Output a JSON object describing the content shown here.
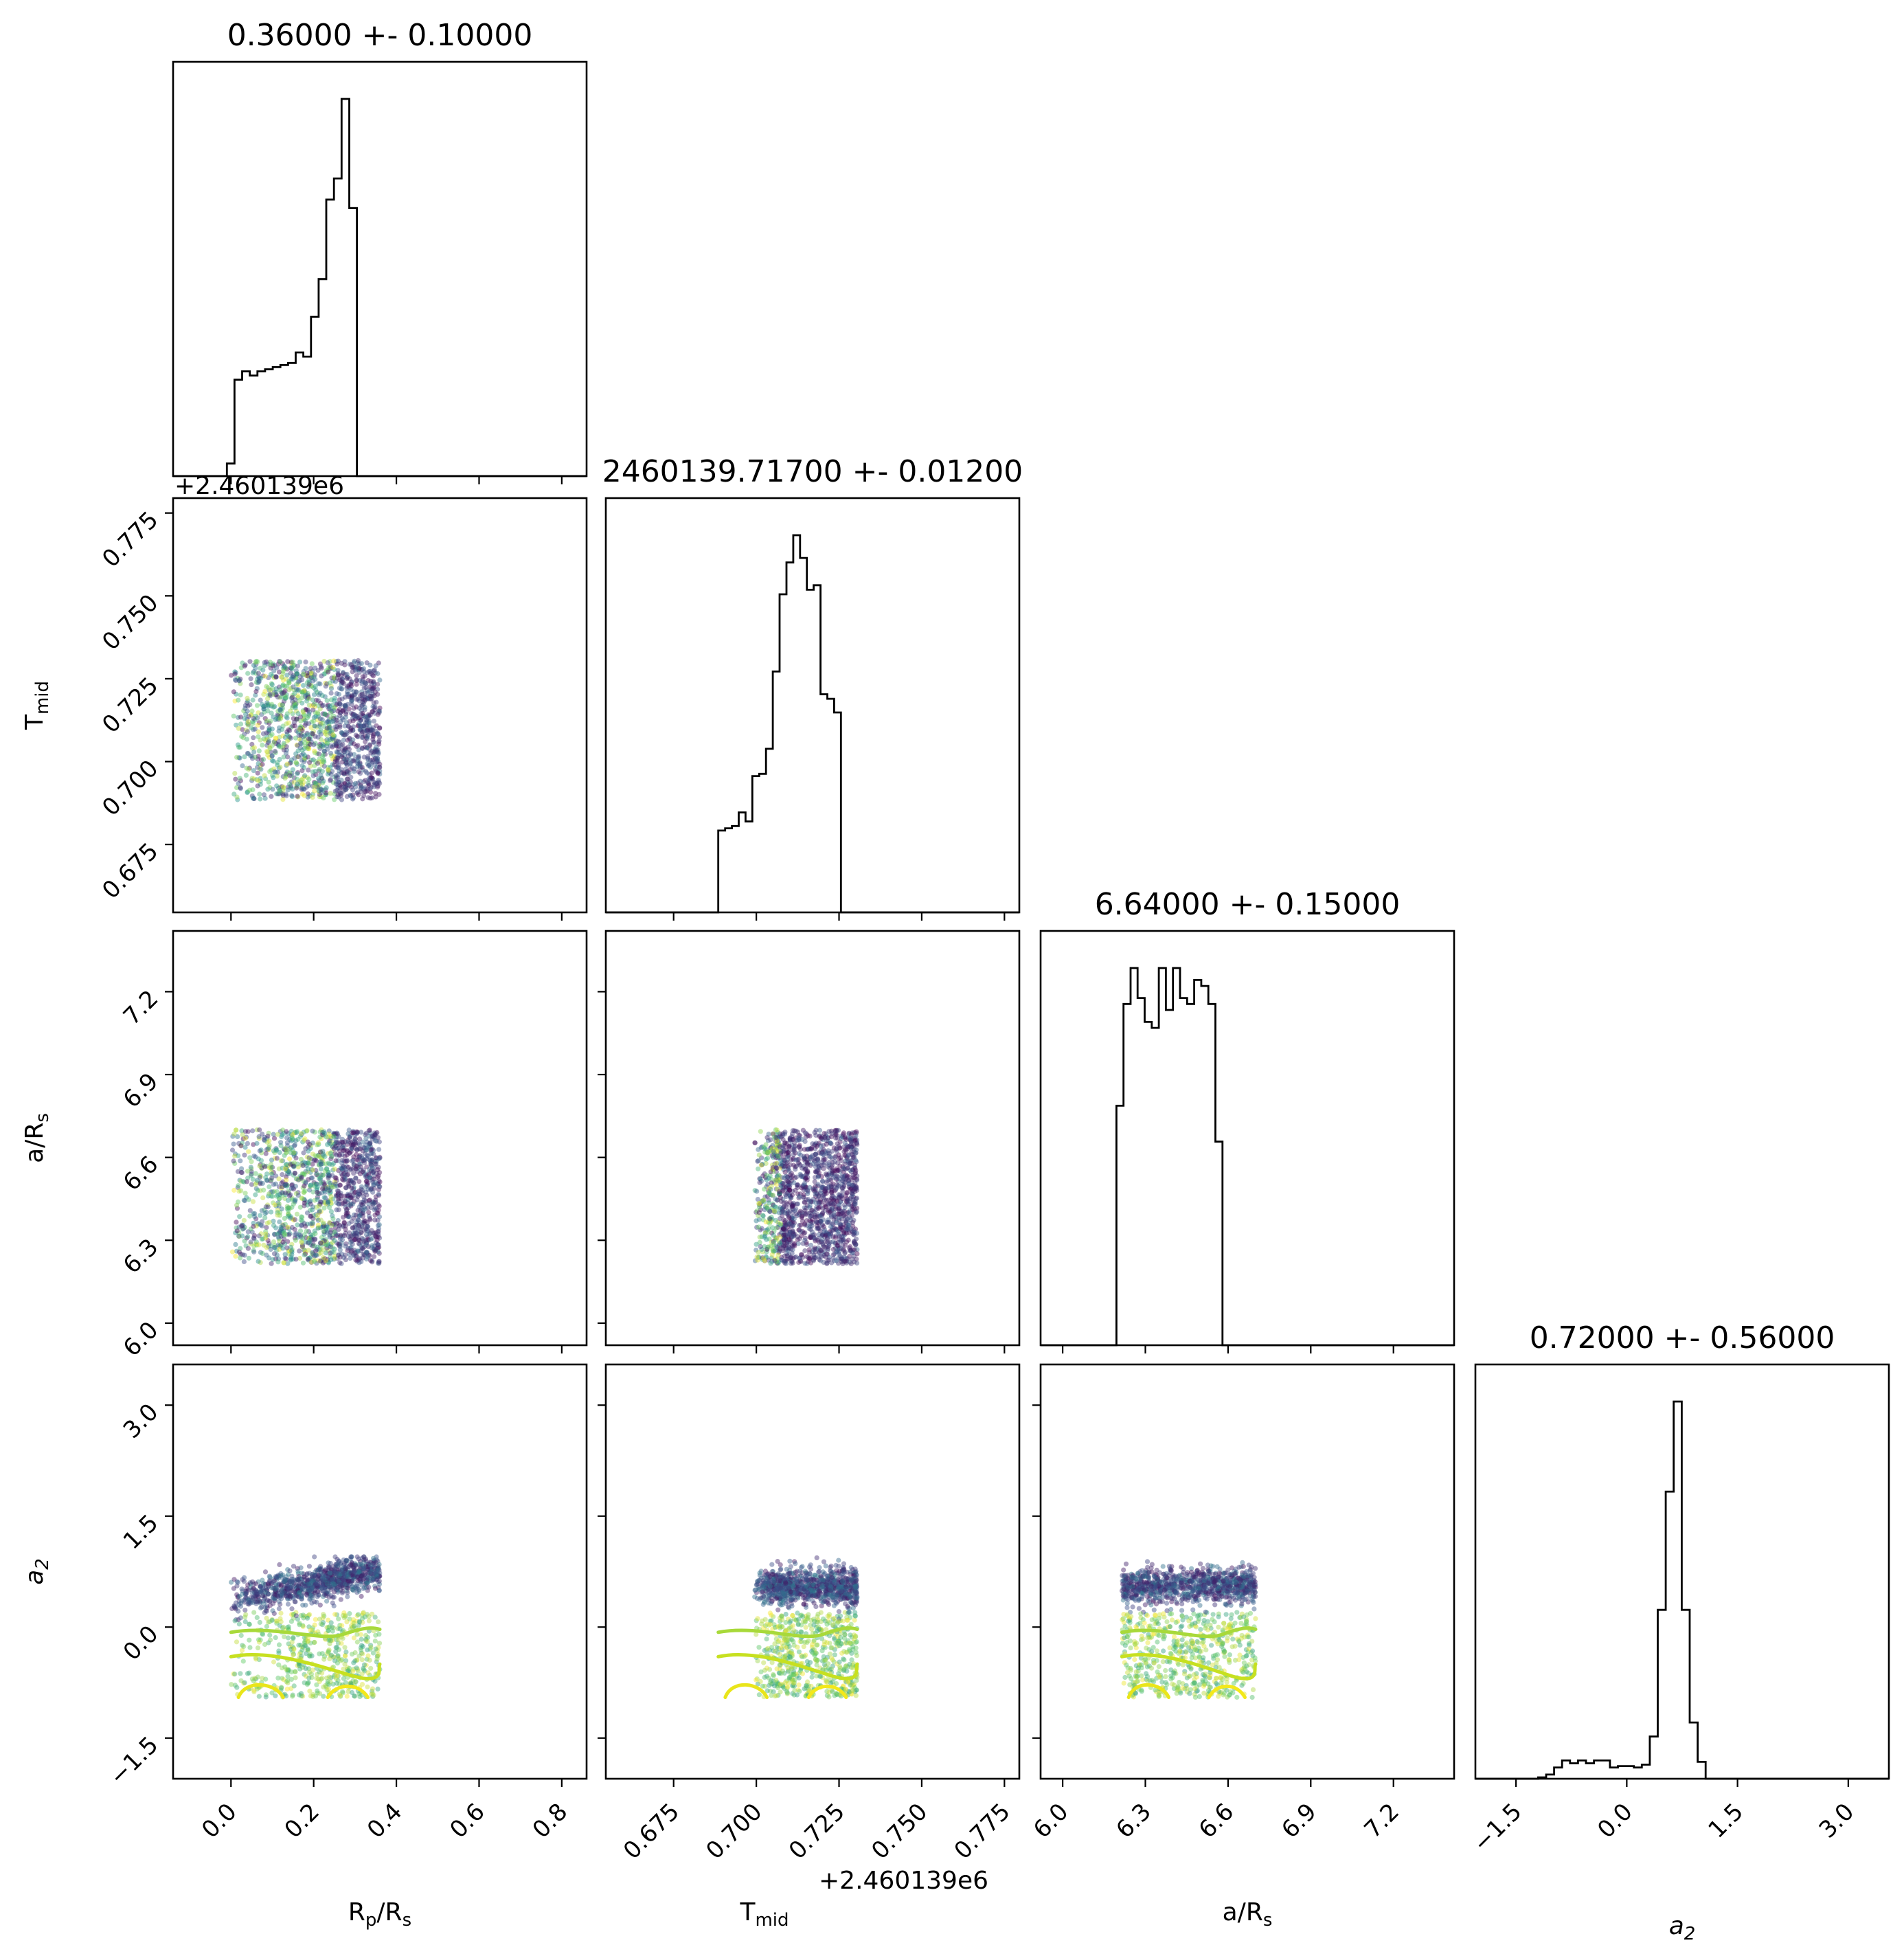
{
  "chart_data": {
    "type": "corner",
    "parameters": [
      {
        "key": "rp",
        "label_main": "R",
        "label_sub1": "p",
        "label_mid": "/R",
        "label_sub2": "s"
      },
      {
        "key": "tmid",
        "label_main": "T",
        "label_sub1": "mid",
        "label_mid": "",
        "label_sub2": ""
      },
      {
        "key": "ars",
        "label_main": "a/R",
        "label_sub1": "s",
        "label_mid": "",
        "label_sub2": ""
      },
      {
        "key": "a2",
        "label_main": "a",
        "label_sub1": "2",
        "label_mid": "",
        "label_sub2": ""
      }
    ],
    "titles": [
      "0.36000 +- 0.10000",
      "2460139.71700 +- 0.01200",
      "6.64000 +- 0.15000",
      "0.72000 +- 0.56000"
    ],
    "offset_text": "+2.460139e6",
    "axes": {
      "rp": {
        "range": [
          -0.14,
          0.86
        ],
        "ticks": [
          0.0,
          0.2,
          0.4,
          0.6,
          0.8
        ],
        "tick_labels": [
          "0.0",
          "0.2",
          "0.4",
          "0.6",
          "0.8"
        ]
      },
      "tmid": {
        "range": [
          0.6545,
          0.7795
        ],
        "ticks": [
          0.675,
          0.7,
          0.725,
          0.75,
          0.775
        ],
        "tick_labels": [
          "0.675",
          "0.700",
          "0.725",
          "0.750",
          "0.775"
        ]
      },
      "ars": {
        "range": [
          5.92,
          7.42
        ],
        "ticks": [
          6.0,
          6.3,
          6.6,
          6.9,
          7.2
        ],
        "tick_labels": [
          "6.0",
          "6.3",
          "6.6",
          "6.9",
          "7.2"
        ]
      },
      "a2": {
        "range": [
          -2.05,
          3.55
        ],
        "ticks": [
          -1.5,
          0.0,
          1.5,
          3.0
        ],
        "tick_labels": [
          "−1.5",
          "0.0",
          "1.5",
          "3.0"
        ]
      }
    },
    "histograms": {
      "rp": {
        "bin_start": -0.01,
        "bin_width": 0.0185,
        "counts": [
          3,
          23,
          25,
          24,
          25,
          25.5,
          26,
          26.5,
          27,
          29.5,
          28.5,
          38,
          47,
          66,
          71,
          90,
          64
        ]
      },
      "tmid": {
        "bin_start": 0.6885,
        "bin_width": 0.00206,
        "counts": [
          18,
          18.5,
          19,
          22,
          20,
          30,
          30.5,
          36,
          53,
          70,
          77,
          83,
          78,
          71,
          72,
          48,
          47,
          44
        ]
      },
      "ars": {
        "bin_start": 6.195,
        "bin_width": 0.02565,
        "counts": [
          40,
          57,
          63,
          58,
          54,
          53,
          63,
          56,
          63,
          58,
          57,
          61,
          60,
          57,
          34
        ]
      },
      "a2": {
        "bin_start": -1.2,
        "bin_width": 0.108,
        "counts": [
          1,
          3,
          8,
          13,
          11,
          13,
          11,
          13,
          13,
          8,
          9,
          9,
          8,
          10,
          30,
          120,
          204,
          268,
          120,
          40,
          12
        ]
      }
    },
    "scatter_regions": {
      "rp": [
        0.0,
        0.36
      ],
      "tmid": [
        0.6885,
        0.7305
      ],
      "ars": [
        6.215,
        6.7
      ],
      "a2": [
        -0.95,
        0.95
      ]
    },
    "point_colormap": "viridis",
    "grid": false,
    "legend": false
  }
}
